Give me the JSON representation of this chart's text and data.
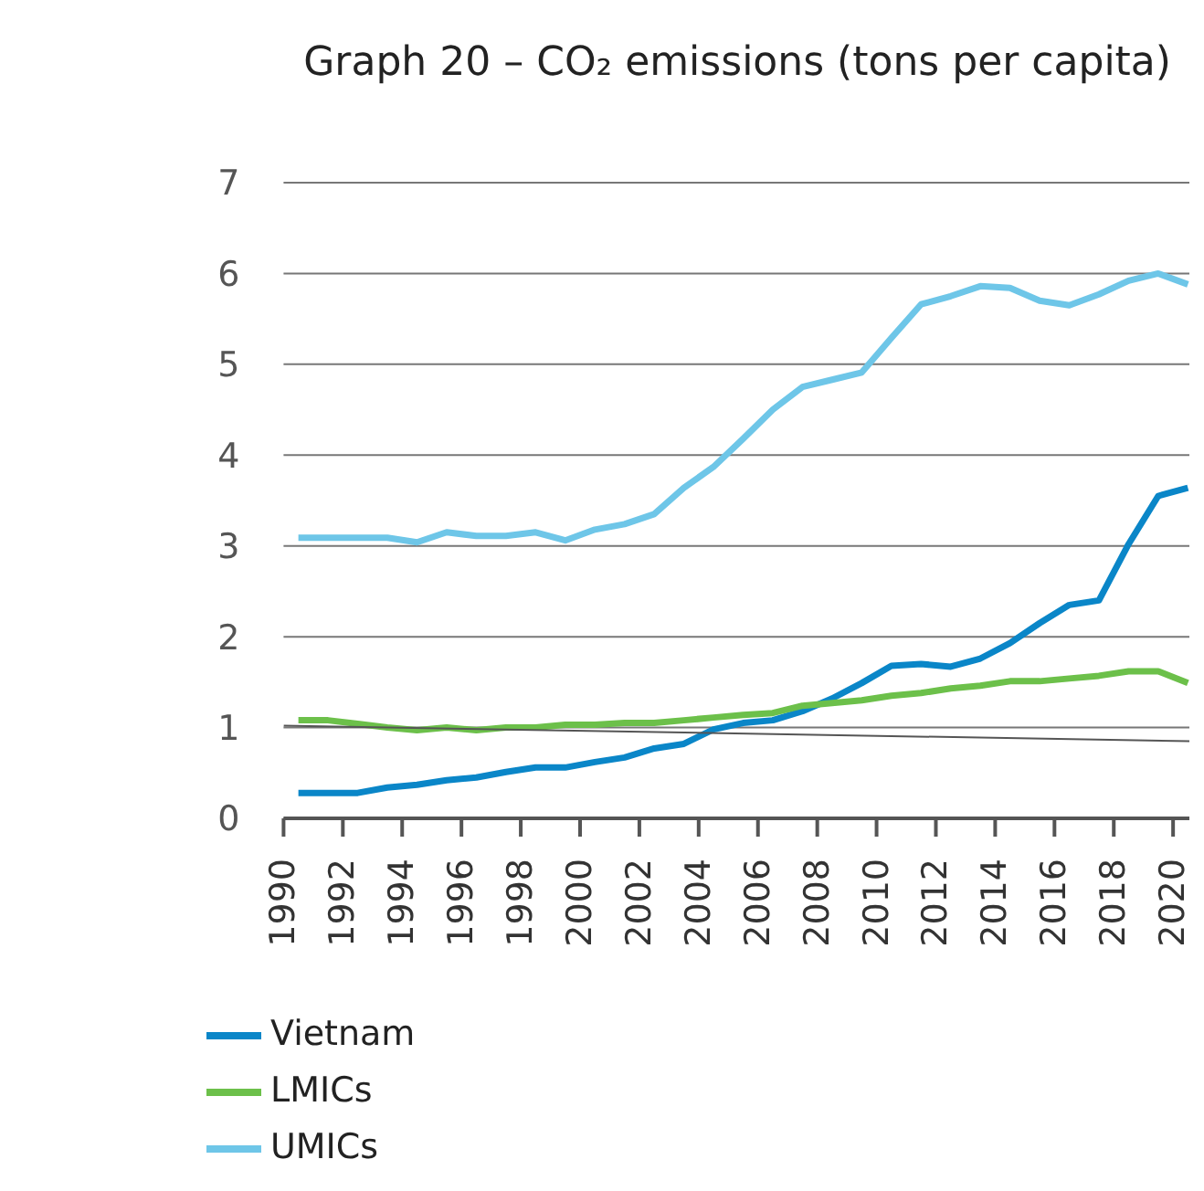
{
  "chart_data": {
    "type": "line",
    "title": "Graph 20 – CO₂ emissions (tons per capita)",
    "x": [
      1990.5,
      1991.5,
      1992.5,
      1993.5,
      1994.5,
      1995.5,
      1996.5,
      1997.5,
      1998.5,
      1999.5,
      2000.5,
      2001.5,
      2002.5,
      2003.5,
      2004.5,
      2005.5,
      2006.5,
      2007.5,
      2008.5,
      2009.5,
      2010.5,
      2011.5,
      2012.5,
      2013.5,
      2014.5,
      2015.5,
      2016.5,
      2017.5,
      2018.5,
      2019.5,
      2020.5
    ],
    "series": [
      {
        "name": "Vietnam",
        "color": "#0a86c8",
        "values": [
          0.28,
          0.28,
          0.28,
          0.34,
          0.37,
          0.42,
          0.45,
          0.51,
          0.56,
          0.56,
          0.62,
          0.67,
          0.77,
          0.82,
          0.98,
          1.05,
          1.08,
          1.18,
          1.32,
          1.49,
          1.68,
          1.7,
          1.67,
          1.76,
          1.93,
          2.15,
          2.35,
          2.4,
          3.02,
          3.55,
          3.64
        ]
      },
      {
        "name": "LMICs",
        "color": "#6cc04a",
        "values": [
          1.08,
          1.08,
          1.04,
          1.0,
          0.97,
          1.0,
          0.97,
          1.0,
          1.0,
          1.03,
          1.03,
          1.05,
          1.05,
          1.08,
          1.11,
          1.14,
          1.16,
          1.24,
          1.27,
          1.3,
          1.35,
          1.38,
          1.43,
          1.46,
          1.51,
          1.51,
          1.54,
          1.57,
          1.62,
          1.62,
          1.49
        ]
      },
      {
        "name": "UMICs",
        "color": "#6ec6e8",
        "values": [
          3.09,
          3.09,
          3.09,
          3.09,
          3.04,
          3.15,
          3.11,
          3.11,
          3.15,
          3.06,
          3.18,
          3.24,
          3.35,
          3.64,
          3.87,
          4.18,
          4.5,
          4.75,
          4.83,
          4.91,
          5.29,
          5.66,
          5.75,
          5.86,
          5.84,
          5.7,
          5.65,
          5.77,
          5.92,
          6.0,
          5.88
        ]
      },
      {
        "type": "line",
        "color": "#555555",
        "x": [
          1990,
          2020.55
        ],
        "values": [
          1.02,
          0.85
        ]
      }
    ],
    "xlim": [
      1990,
      2020.55
    ],
    "xticks": [
      1990,
      1992,
      1994,
      1996,
      1998,
      2000,
      2002,
      2004,
      2006,
      2008,
      2010,
      2012,
      2014,
      2016,
      2018,
      2020
    ],
    "ylim": [
      0,
      7
    ],
    "yticks": [
      0,
      1,
      2,
      3,
      4,
      5,
      6,
      7
    ],
    "grid": "y",
    "legend": "bottom left",
    "marker": "none",
    "line_style": "solid"
  }
}
